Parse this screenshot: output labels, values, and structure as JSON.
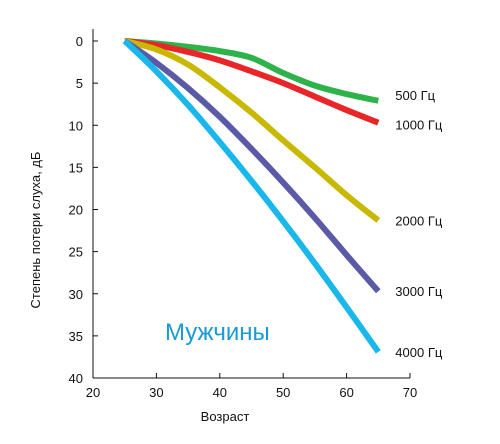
{
  "chart_data": {
    "type": "line",
    "title": "",
    "xlabel": "Возраст",
    "ylabel": "Степень потери слуха, дБ",
    "xlim": [
      20,
      70
    ],
    "ylim": [
      0,
      40
    ],
    "y_inverted": true,
    "xticks": [
      20,
      30,
      40,
      50,
      60,
      70
    ],
    "yticks": [
      0,
      5,
      10,
      15,
      20,
      25,
      30,
      35,
      40
    ],
    "grid": false,
    "annotation": {
      "text": "Мужчины",
      "color": "#1a9ad6"
    },
    "series": [
      {
        "name": "500 Гц",
        "color": "#2db34a",
        "x": [
          25,
          30,
          35,
          40,
          45,
          50,
          55,
          60,
          65
        ],
        "y": [
          0,
          0.3,
          0.7,
          1.2,
          2.0,
          3.8,
          5.3,
          6.3,
          7.1
        ]
      },
      {
        "name": "1000 Гц",
        "color": "#e8262a",
        "x": [
          25,
          30,
          35,
          40,
          45,
          50,
          55,
          60,
          65
        ],
        "y": [
          0,
          0.5,
          1.3,
          2.3,
          3.6,
          5.0,
          6.6,
          8.2,
          9.7
        ]
      },
      {
        "name": "2000 Гц",
        "color": "#c9b800",
        "x": [
          25,
          30,
          35,
          40,
          45,
          50,
          55,
          60,
          65
        ],
        "y": [
          0,
          1.0,
          2.8,
          5.5,
          8.5,
          11.8,
          15.0,
          18.3,
          21.3
        ]
      },
      {
        "name": "3000 Гц",
        "color": "#5b5aa6",
        "x": [
          25,
          30,
          35,
          40,
          45,
          50,
          55,
          60,
          65
        ],
        "y": [
          0,
          2.6,
          5.6,
          9.0,
          12.8,
          16.8,
          21.0,
          25.4,
          29.7
        ]
      },
      {
        "name": "4000 Гц",
        "color": "#19b7ea",
        "x": [
          25,
          30,
          35,
          40,
          45,
          50,
          55,
          60,
          65
        ],
        "y": [
          0,
          3.6,
          7.6,
          12.0,
          16.6,
          21.4,
          26.4,
          31.6,
          36.9
        ]
      }
    ]
  }
}
